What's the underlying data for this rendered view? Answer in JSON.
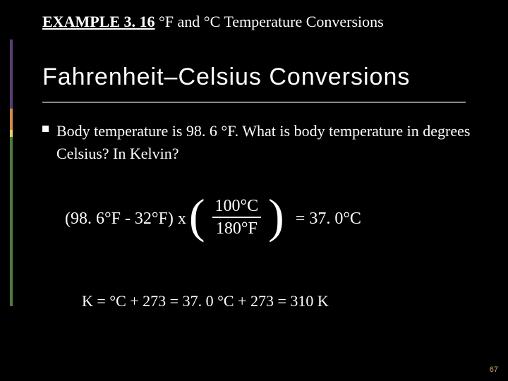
{
  "accent_colors": {
    "purple": "#5a3c7a",
    "orange": "#d88a2e",
    "yellow": "#e8d24a",
    "green": "#4a7a3c"
  },
  "accent_heights": {
    "purple": 98,
    "orange": 30,
    "yellow": 10,
    "green": 240
  },
  "header": {
    "bold_prefix": "EXAMPLE 3. 16",
    "rest": " °F and °C Temperature Conversions"
  },
  "title": "Fahrenheit–Celsius Conversions",
  "body": "Body temperature is 98. 6 °F.  What is body temperature in degrees Celsius?  In Kelvin?",
  "equation": {
    "left": "(98. 6°F - 32°F) x",
    "numerator": "100°C",
    "denominator": "180°F",
    "result": "= 37. 0°C"
  },
  "kelvin_line": "K = °C + 273  =  37. 0 °C + 273  =  310 K",
  "page_number": "67"
}
